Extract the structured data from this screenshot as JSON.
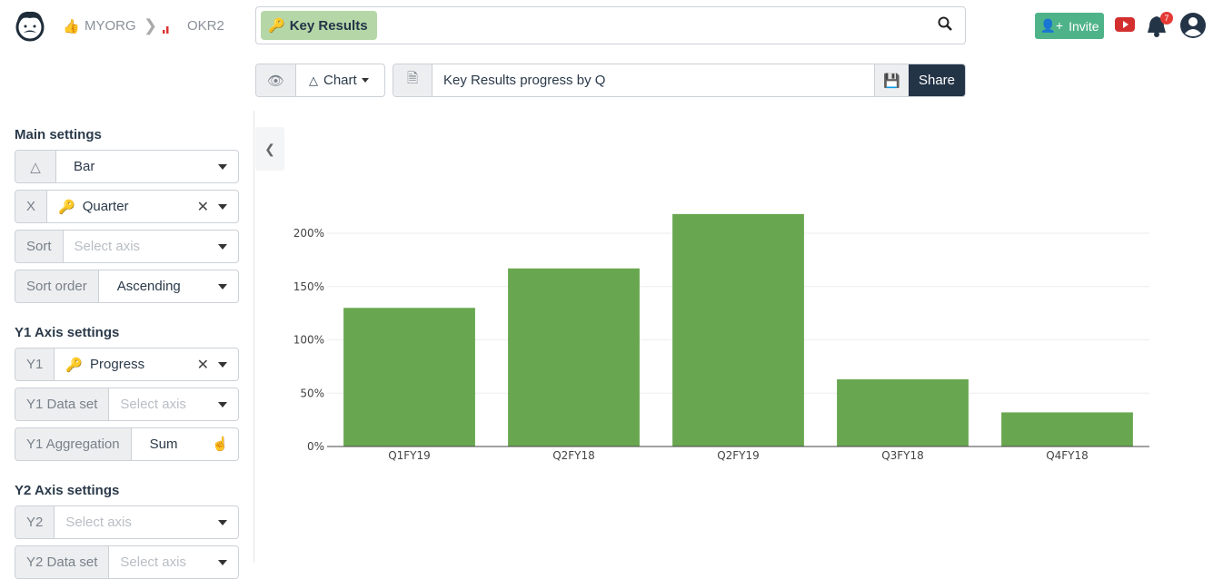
{
  "header": {
    "org": "MYORG",
    "project": "OKR2",
    "search_tag": "Key Results",
    "invite_label": "Invite",
    "notification_count": "7"
  },
  "toolbar": {
    "view_mode": "Chart",
    "title_value": "Key Results progress by Q",
    "share_label": "Share"
  },
  "sidebar": {
    "main_settings": "Main settings",
    "chart_type": "Bar",
    "x_label": "X",
    "x_value": "Quarter",
    "sort_label": "Sort",
    "sort_placeholder": "Select axis",
    "sort_order_label": "Sort order",
    "sort_order_value": "Ascending",
    "y1_settings": "Y1 Axis settings",
    "y1_label": "Y1",
    "y1_value": "Progress",
    "y1_dataset_label": "Y1 Data set",
    "y1_dataset_placeholder": "Select axis",
    "y1_agg_label": "Y1 Aggregation",
    "y1_agg_value": "Sum",
    "y2_settings": "Y2 Axis settings",
    "y2_label": "Y2",
    "y2_placeholder": "Select axis",
    "y2_dataset_label": "Y2 Data set",
    "y2_dataset_placeholder": "Select axis"
  },
  "colors": {
    "bar": "#68a74f",
    "tag": "#b5d6a7",
    "invite": "#4fb38a",
    "share": "#243447"
  },
  "chart_data": {
    "type": "bar",
    "categories": [
      "Q1FY19",
      "Q2FY18",
      "Q2FY19",
      "Q3FY18",
      "Q4FY18"
    ],
    "values": [
      130,
      167,
      218,
      63,
      32
    ],
    "ylim": [
      0,
      200
    ],
    "yticks": [
      0,
      50,
      100,
      150,
      200
    ],
    "ytick_labels": [
      "0%",
      "50%",
      "100%",
      "150%",
      "200%"
    ],
    "grid": true
  }
}
